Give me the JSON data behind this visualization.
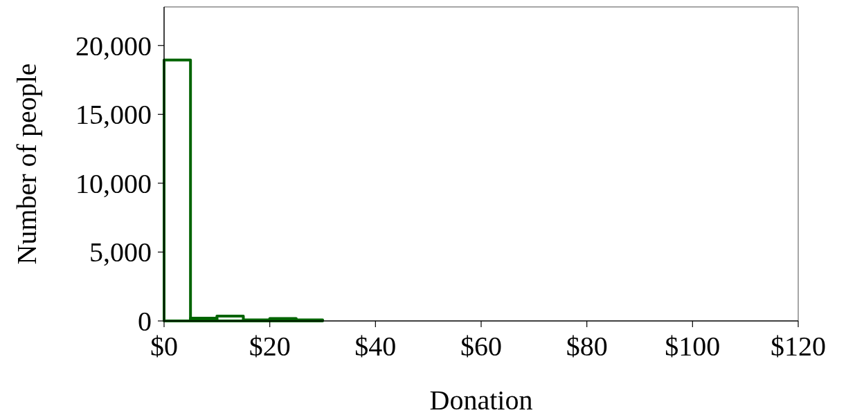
{
  "chart_data": {
    "type": "histogram",
    "xlabel": "Donation",
    "ylabel": "Number of people",
    "color": "#006400",
    "bins": [
      0,
      5,
      10,
      15,
      20,
      25,
      30,
      35,
      40,
      45,
      50,
      55,
      60,
      65,
      70,
      75,
      80,
      85,
      90,
      95,
      100,
      105
    ],
    "values": [
      18950,
      200,
      350,
      80,
      180,
      80,
      0,
      0,
      0,
      0,
      0,
      0,
      0,
      0,
      0,
      0,
      0,
      0,
      0,
      0,
      0
    ],
    "xlim": [
      0,
      120
    ],
    "xticks": [
      {
        "value": 0,
        "label": "$0"
      },
      {
        "value": 20,
        "label": "$20"
      },
      {
        "value": 40,
        "label": "$40"
      },
      {
        "value": 60,
        "label": "$60"
      },
      {
        "value": 80,
        "label": "$80"
      },
      {
        "value": 100,
        "label": "$100"
      },
      {
        "value": 120,
        "label": "$120"
      }
    ],
    "ylim": [
      0,
      22800
    ],
    "yticks": [
      {
        "value": 0,
        "label": "0"
      },
      {
        "value": 5000,
        "label": "5,000"
      },
      {
        "value": 10000,
        "label": "10,000"
      },
      {
        "value": 15000,
        "label": "15,000"
      },
      {
        "value": 20000,
        "label": "20,000"
      }
    ],
    "grid": false
  }
}
